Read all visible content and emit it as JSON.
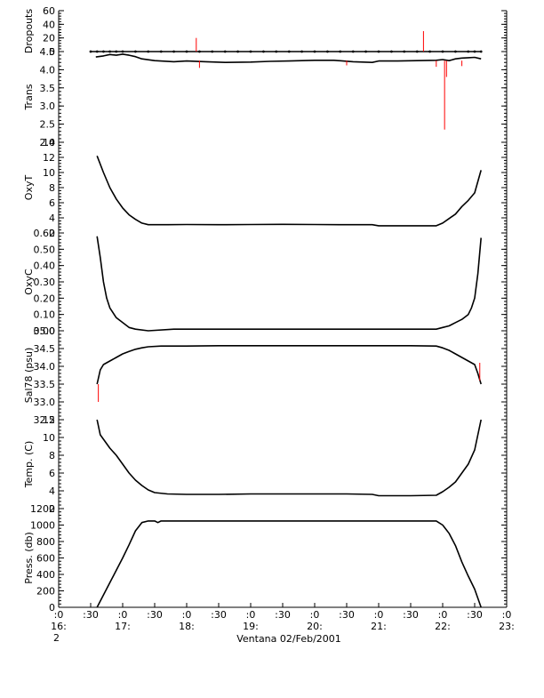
{
  "chart_data": {
    "type": "line",
    "xlabel": "Ventana 02/Feb/2001",
    "x_axis": {
      "unit": "hours",
      "range": [
        16.0,
        23.0
      ],
      "ticks": [
        {
          "v": 16.0,
          "line1": ":0",
          "line2": "16:",
          "line3": "2"
        },
        {
          "v": 16.5,
          "line1": ":30",
          "line2": "",
          "line3": ""
        },
        {
          "v": 17.0,
          "line1": ":0",
          "line2": "17:",
          "line3": ""
        },
        {
          "v": 17.5,
          "line1": ":30",
          "line2": "",
          "line3": ""
        },
        {
          "v": 18.0,
          "line1": ":0",
          "line2": "18:",
          "line3": ""
        },
        {
          "v": 18.5,
          "line1": ":30",
          "line2": "",
          "line3": ""
        },
        {
          "v": 19.0,
          "line1": ":0",
          "line2": "19:",
          "line3": ""
        },
        {
          "v": 19.5,
          "line1": ":30",
          "line2": "",
          "line3": ""
        },
        {
          "v": 20.0,
          "line1": ":0",
          "line2": "20:",
          "line3": ""
        },
        {
          "v": 20.5,
          "line1": ":30",
          "line2": "",
          "line3": ""
        },
        {
          "v": 21.0,
          "line1": ":0",
          "line2": "21:",
          "line3": ""
        },
        {
          "v": 21.5,
          "line1": ":30",
          "line2": "",
          "line3": ""
        },
        {
          "v": 22.0,
          "line1": ":0",
          "line2": "22:",
          "line3": ""
        },
        {
          "v": 22.5,
          "line1": ":30",
          "line2": "",
          "line3": ""
        },
        {
          "v": 23.0,
          "line1": ":0",
          "line2": "23:",
          "line3": ""
        }
      ]
    },
    "panels": [
      {
        "id": "dropouts",
        "ylabel": "Dropouts",
        "ylim": [
          0,
          60
        ],
        "yticks": [
          {
            "v": 0,
            "t": "0"
          },
          {
            "v": 20,
            "t": "20"
          },
          {
            "v": 40,
            "t": "40"
          },
          {
            "v": 60,
            "t": "60"
          }
        ],
        "series": [
          {
            "color": "#000000",
            "markers": true,
            "x": [
              16.5,
              16.6,
              16.7,
              16.8,
              16.9,
              17.0,
              17.2,
              17.4,
              17.6,
              17.8,
              18.0,
              18.2,
              18.4,
              18.6,
              18.8,
              19.0,
              19.2,
              19.4,
              19.6,
              19.8,
              20.0,
              20.2,
              20.4,
              20.6,
              20.8,
              21.0,
              21.2,
              21.4,
              21.6,
              21.8,
              22.0,
              22.2,
              22.4,
              22.5,
              22.6
            ],
            "y": [
              0,
              0,
              0,
              0,
              0,
              0,
              0,
              0,
              0,
              0,
              0,
              0,
              0,
              0,
              0,
              0,
              0,
              0,
              0,
              0,
              0,
              0,
              0,
              0,
              0,
              0,
              0,
              0,
              0,
              0,
              0,
              0,
              0,
              0,
              0
            ]
          },
          {
            "color": "#ff0000",
            "spikes": true,
            "x": [
              18.15,
              21.7
            ],
            "y": [
              20,
              30
            ]
          }
        ]
      },
      {
        "id": "trans",
        "ylabel": "Trans",
        "ylim": [
          2.0,
          4.5
        ],
        "yticks": [
          {
            "v": 2.0,
            "t": "2.0"
          },
          {
            "v": 2.5,
            "t": "2.5"
          },
          {
            "v": 3.0,
            "t": "3.0"
          },
          {
            "v": 3.5,
            "t": "3.5"
          },
          {
            "v": 4.0,
            "t": "4.0"
          },
          {
            "v": 4.5,
            "t": "4.5"
          }
        ],
        "series": [
          {
            "color": "#000000",
            "x": [
              16.58,
              16.7,
              16.8,
              16.9,
              17.0,
              17.1,
              17.2,
              17.3,
              17.5,
              17.8,
              18.0,
              18.3,
              18.6,
              19.0,
              19.3,
              19.6,
              20.0,
              20.3,
              20.6,
              20.9,
              21.0,
              21.3,
              21.6,
              21.9,
              22.0,
              22.1,
              22.2,
              22.3,
              22.4,
              22.5,
              22.6
            ],
            "y": [
              4.35,
              4.38,
              4.42,
              4.4,
              4.43,
              4.4,
              4.36,
              4.3,
              4.25,
              4.22,
              4.24,
              4.22,
              4.2,
              4.21,
              4.23,
              4.24,
              4.26,
              4.26,
              4.22,
              4.2,
              4.24,
              4.24,
              4.25,
              4.26,
              4.28,
              4.25,
              4.3,
              4.32,
              4.33,
              4.34,
              4.3
            ]
          },
          {
            "color": "#ff0000",
            "spikes": true,
            "x": [
              18.2,
              20.5,
              21.9,
              22.03,
              22.06,
              22.3
            ],
            "y": [
              4.05,
              4.12,
              4.08,
              2.35,
              3.8,
              4.1
            ]
          }
        ]
      },
      {
        "id": "oxyt",
        "ylabel": "OxyT",
        "ylim": [
          2,
          14
        ],
        "yticks": [
          {
            "v": 2,
            "t": "2"
          },
          {
            "v": 4,
            "t": "4"
          },
          {
            "v": 6,
            "t": "6"
          },
          {
            "v": 8,
            "t": "8"
          },
          {
            "v": 10,
            "t": "10"
          },
          {
            "v": 12,
            "t": "12"
          },
          {
            "v": 14,
            "t": "14"
          }
        ],
        "series": [
          {
            "color": "#000000",
            "x": [
              16.6,
              16.7,
              16.8,
              16.9,
              17.0,
              17.1,
              17.2,
              17.3,
              17.4,
              17.5,
              17.7,
              18.0,
              18.5,
              19.0,
              19.5,
              20.0,
              20.5,
              20.9,
              21.0,
              21.5,
              21.9,
              22.0,
              22.1,
              22.2,
              22.3,
              22.4,
              22.5,
              22.6
            ],
            "y": [
              12.2,
              10.0,
              8.0,
              6.5,
              5.3,
              4.4,
              3.8,
              3.3,
              3.1,
              3.1,
              3.1,
              3.12,
              3.1,
              3.12,
              3.14,
              3.12,
              3.1,
              3.1,
              2.95,
              2.95,
              2.95,
              3.3,
              3.9,
              4.5,
              5.5,
              6.3,
              7.3,
              10.3
            ]
          }
        ]
      },
      {
        "id": "oxyc",
        "ylabel": "OxyC",
        "ylim": [
          0.0,
          0.6
        ],
        "yticks": [
          {
            "v": 0.0,
            "t": "0.00"
          },
          {
            "v": 0.1,
            "t": "0.10"
          },
          {
            "v": 0.2,
            "t": "0.20"
          },
          {
            "v": 0.3,
            "t": "0.30"
          },
          {
            "v": 0.4,
            "t": "0.40"
          },
          {
            "v": 0.5,
            "t": "0.50"
          },
          {
            "v": 0.6,
            "t": "0.60"
          }
        ],
        "series": [
          {
            "color": "#000000",
            "x": [
              16.6,
              16.65,
              16.7,
              16.75,
              16.8,
              16.9,
              17.0,
              17.1,
              17.2,
              17.4,
              17.8,
              18.3,
              19.0,
              19.5,
              20.0,
              20.5,
              21.0,
              21.5,
              21.9,
              22.0,
              22.1,
              22.2,
              22.3,
              22.4,
              22.45,
              22.5,
              22.55,
              22.6
            ],
            "y": [
              0.58,
              0.45,
              0.3,
              0.2,
              0.14,
              0.08,
              0.05,
              0.02,
              0.01,
              0.0,
              0.01,
              0.01,
              0.01,
              0.01,
              0.01,
              0.01,
              0.01,
              0.01,
              0.01,
              0.02,
              0.03,
              0.05,
              0.07,
              0.1,
              0.14,
              0.2,
              0.35,
              0.57
            ]
          }
        ]
      },
      {
        "id": "sal",
        "ylabel": "Sal78 (psu)",
        "ylim": [
          32.5,
          35.0
        ],
        "yticks": [
          {
            "v": 32.5,
            "t": "32.5"
          },
          {
            "v": 33.0,
            "t": "33.0"
          },
          {
            "v": 33.5,
            "t": "33.5"
          },
          {
            "v": 34.0,
            "t": "34.0"
          },
          {
            "v": 34.5,
            "t": "34.5"
          },
          {
            "v": 35.0,
            "t": "35.0"
          }
        ],
        "series": [
          {
            "color": "#000000",
            "x": [
              16.6,
              16.65,
              16.7,
              16.8,
              16.9,
              17.0,
              17.1,
              17.2,
              17.3,
              17.4,
              17.6,
              18.0,
              18.5,
              19.0,
              19.5,
              20.0,
              20.5,
              21.0,
              21.5,
              21.9,
              22.0,
              22.1,
              22.2,
              22.3,
              22.4,
              22.5,
              22.55,
              22.6
            ],
            "y": [
              33.5,
              33.9,
              34.05,
              34.15,
              34.25,
              34.35,
              34.42,
              34.48,
              34.52,
              34.55,
              34.57,
              34.57,
              34.58,
              34.58,
              34.58,
              34.58,
              34.58,
              34.58,
              34.58,
              34.57,
              34.52,
              34.45,
              34.35,
              34.25,
              34.15,
              34.05,
              33.8,
              33.5
            ]
          },
          {
            "color": "#ff0000",
            "spikes": true,
            "x": [
              16.62,
              22.58
            ],
            "y": [
              33.0,
              33.6
            ]
          }
        ]
      },
      {
        "id": "temp",
        "ylabel": "Temp. (C)",
        "ylim": [
          2,
          12
        ],
        "yticks": [
          {
            "v": 2,
            "t": "2"
          },
          {
            "v": 4,
            "t": "4"
          },
          {
            "v": 6,
            "t": "6"
          },
          {
            "v": 8,
            "t": "8"
          },
          {
            "v": 10,
            "t": "10"
          },
          {
            "v": 12,
            "t": "12"
          }
        ],
        "series": [
          {
            "color": "#000000",
            "x": [
              16.6,
              16.65,
              16.7,
              16.8,
              16.9,
              17.0,
              17.1,
              17.2,
              17.3,
              17.4,
              17.5,
              17.7,
              18.0,
              18.5,
              19.0,
              19.5,
              20.0,
              20.5,
              20.9,
              21.0,
              21.5,
              21.9,
              22.0,
              22.1,
              22.2,
              22.3,
              22.4,
              22.5,
              22.55,
              22.6
            ],
            "y": [
              12.0,
              10.3,
              9.8,
              8.8,
              8.0,
              7.0,
              6.0,
              5.2,
              4.6,
              4.1,
              3.8,
              3.65,
              3.6,
              3.6,
              3.65,
              3.65,
              3.65,
              3.65,
              3.6,
              3.45,
              3.45,
              3.5,
              3.9,
              4.4,
              5.0,
              6.0,
              7.0,
              8.6,
              10.3,
              12.0
            ]
          }
        ]
      },
      {
        "id": "press",
        "ylabel": "Press. (db)",
        "ylim": [
          0,
          1200
        ],
        "yticks": [
          {
            "v": 0,
            "t": "0"
          },
          {
            "v": 200,
            "t": "200"
          },
          {
            "v": 400,
            "t": "400"
          },
          {
            "v": 600,
            "t": "600"
          },
          {
            "v": 800,
            "t": "800"
          },
          {
            "v": 1000,
            "t": "1000"
          },
          {
            "v": 1200,
            "t": "1200"
          }
        ],
        "series": [
          {
            "color": "#000000",
            "x": [
              16.6,
              16.8,
              17.0,
              17.1,
              17.2,
              17.3,
              17.4,
              17.5,
              17.55,
              17.6,
              17.7,
              18.0,
              19.0,
              20.0,
              21.0,
              21.5,
              21.9,
              22.0,
              22.05,
              22.1,
              22.2,
              22.3,
              22.4,
              22.5,
              22.6
            ],
            "y": [
              0,
              300,
              600,
              760,
              930,
              1030,
              1050,
              1050,
              1030,
              1050,
              1050,
              1050,
              1050,
              1050,
              1050,
              1050,
              1050,
              1000,
              950,
              900,
              750,
              550,
              380,
              220,
              0
            ]
          }
        ]
      }
    ]
  }
}
